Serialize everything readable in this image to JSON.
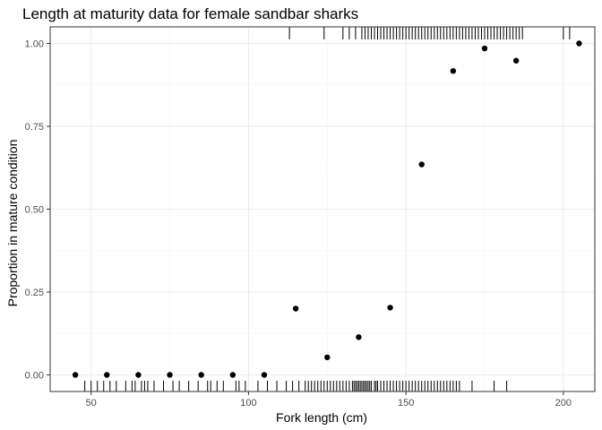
{
  "chart_data": {
    "type": "scatter",
    "title": "Length at maturity data for female sandbar sharks",
    "xlabel": "Fork length (cm)",
    "ylabel": "Proportion in mature condition",
    "xlim": [
      37,
      210
    ],
    "ylim": [
      -0.05,
      1.05
    ],
    "x_ticks": [
      50,
      100,
      150,
      200
    ],
    "y_ticks": [
      0,
      0.25,
      0.5,
      0.75,
      1.0
    ],
    "x_tick_labels": [
      "50",
      "100",
      "150",
      "200"
    ],
    "y_tick_labels": [
      "0.00",
      "0.25",
      "0.50",
      "0.75",
      "1.00"
    ],
    "grid": true,
    "theme": "bw",
    "points": [
      {
        "x": 45,
        "y": 0.0
      },
      {
        "x": 55,
        "y": 0.0
      },
      {
        "x": 65,
        "y": 0.0
      },
      {
        "x": 75,
        "y": 0.0
      },
      {
        "x": 85,
        "y": 0.0
      },
      {
        "x": 95,
        "y": 0.0
      },
      {
        "x": 105,
        "y": 0.0
      },
      {
        "x": 115,
        "y": 0.2
      },
      {
        "x": 125,
        "y": 0.053
      },
      {
        "x": 135,
        "y": 0.114
      },
      {
        "x": 145,
        "y": 0.203
      },
      {
        "x": 155,
        "y": 0.635
      },
      {
        "x": 165,
        "y": 0.917
      },
      {
        "x": 175,
        "y": 0.985
      },
      {
        "x": 185,
        "y": 0.948
      },
      {
        "x": 205,
        "y": 1.0
      }
    ],
    "rug_immature": [
      48,
      50,
      52,
      54,
      56,
      58,
      61,
      63,
      64,
      66,
      67,
      68,
      70,
      73,
      76,
      78,
      81,
      84,
      87,
      88,
      90,
      92,
      96,
      97,
      99,
      103,
      106,
      109,
      112,
      114,
      116,
      118,
      119,
      120,
      121,
      122,
      123,
      124,
      125,
      126,
      127,
      128,
      129,
      130,
      131,
      132,
      133,
      133.5,
      134,
      134.5,
      135,
      135.5,
      136,
      136.5,
      137,
      137.5,
      138,
      138.5,
      139,
      140,
      140.5,
      141,
      142,
      143,
      144,
      145,
      146,
      147,
      148,
      149,
      150,
      151,
      152,
      153,
      154,
      155,
      156,
      157,
      158,
      159,
      160,
      161,
      162,
      163,
      164,
      165,
      166,
      167,
      171,
      178,
      182
    ],
    "rug_mature": [
      113,
      124,
      130,
      132,
      134,
      136,
      137,
      138,
      139,
      140,
      141,
      142,
      143,
      144,
      145,
      146,
      147,
      148,
      149,
      150,
      151,
      152,
      153,
      154,
      155,
      156,
      157,
      158,
      159,
      160,
      161,
      162,
      163,
      164,
      165,
      166,
      167,
      168,
      169,
      170,
      171,
      172,
      173,
      174,
      175,
      176,
      177,
      178,
      179,
      180,
      181,
      182,
      183,
      184,
      185,
      186,
      187,
      200,
      202
    ],
    "colors": {
      "points": "#000000",
      "rug": "#000000",
      "grid_major": "#ebebeb",
      "grid_minor": "#f4f4f4",
      "panel_border": "#333333",
      "tick_text": "#4d4d4d"
    }
  }
}
